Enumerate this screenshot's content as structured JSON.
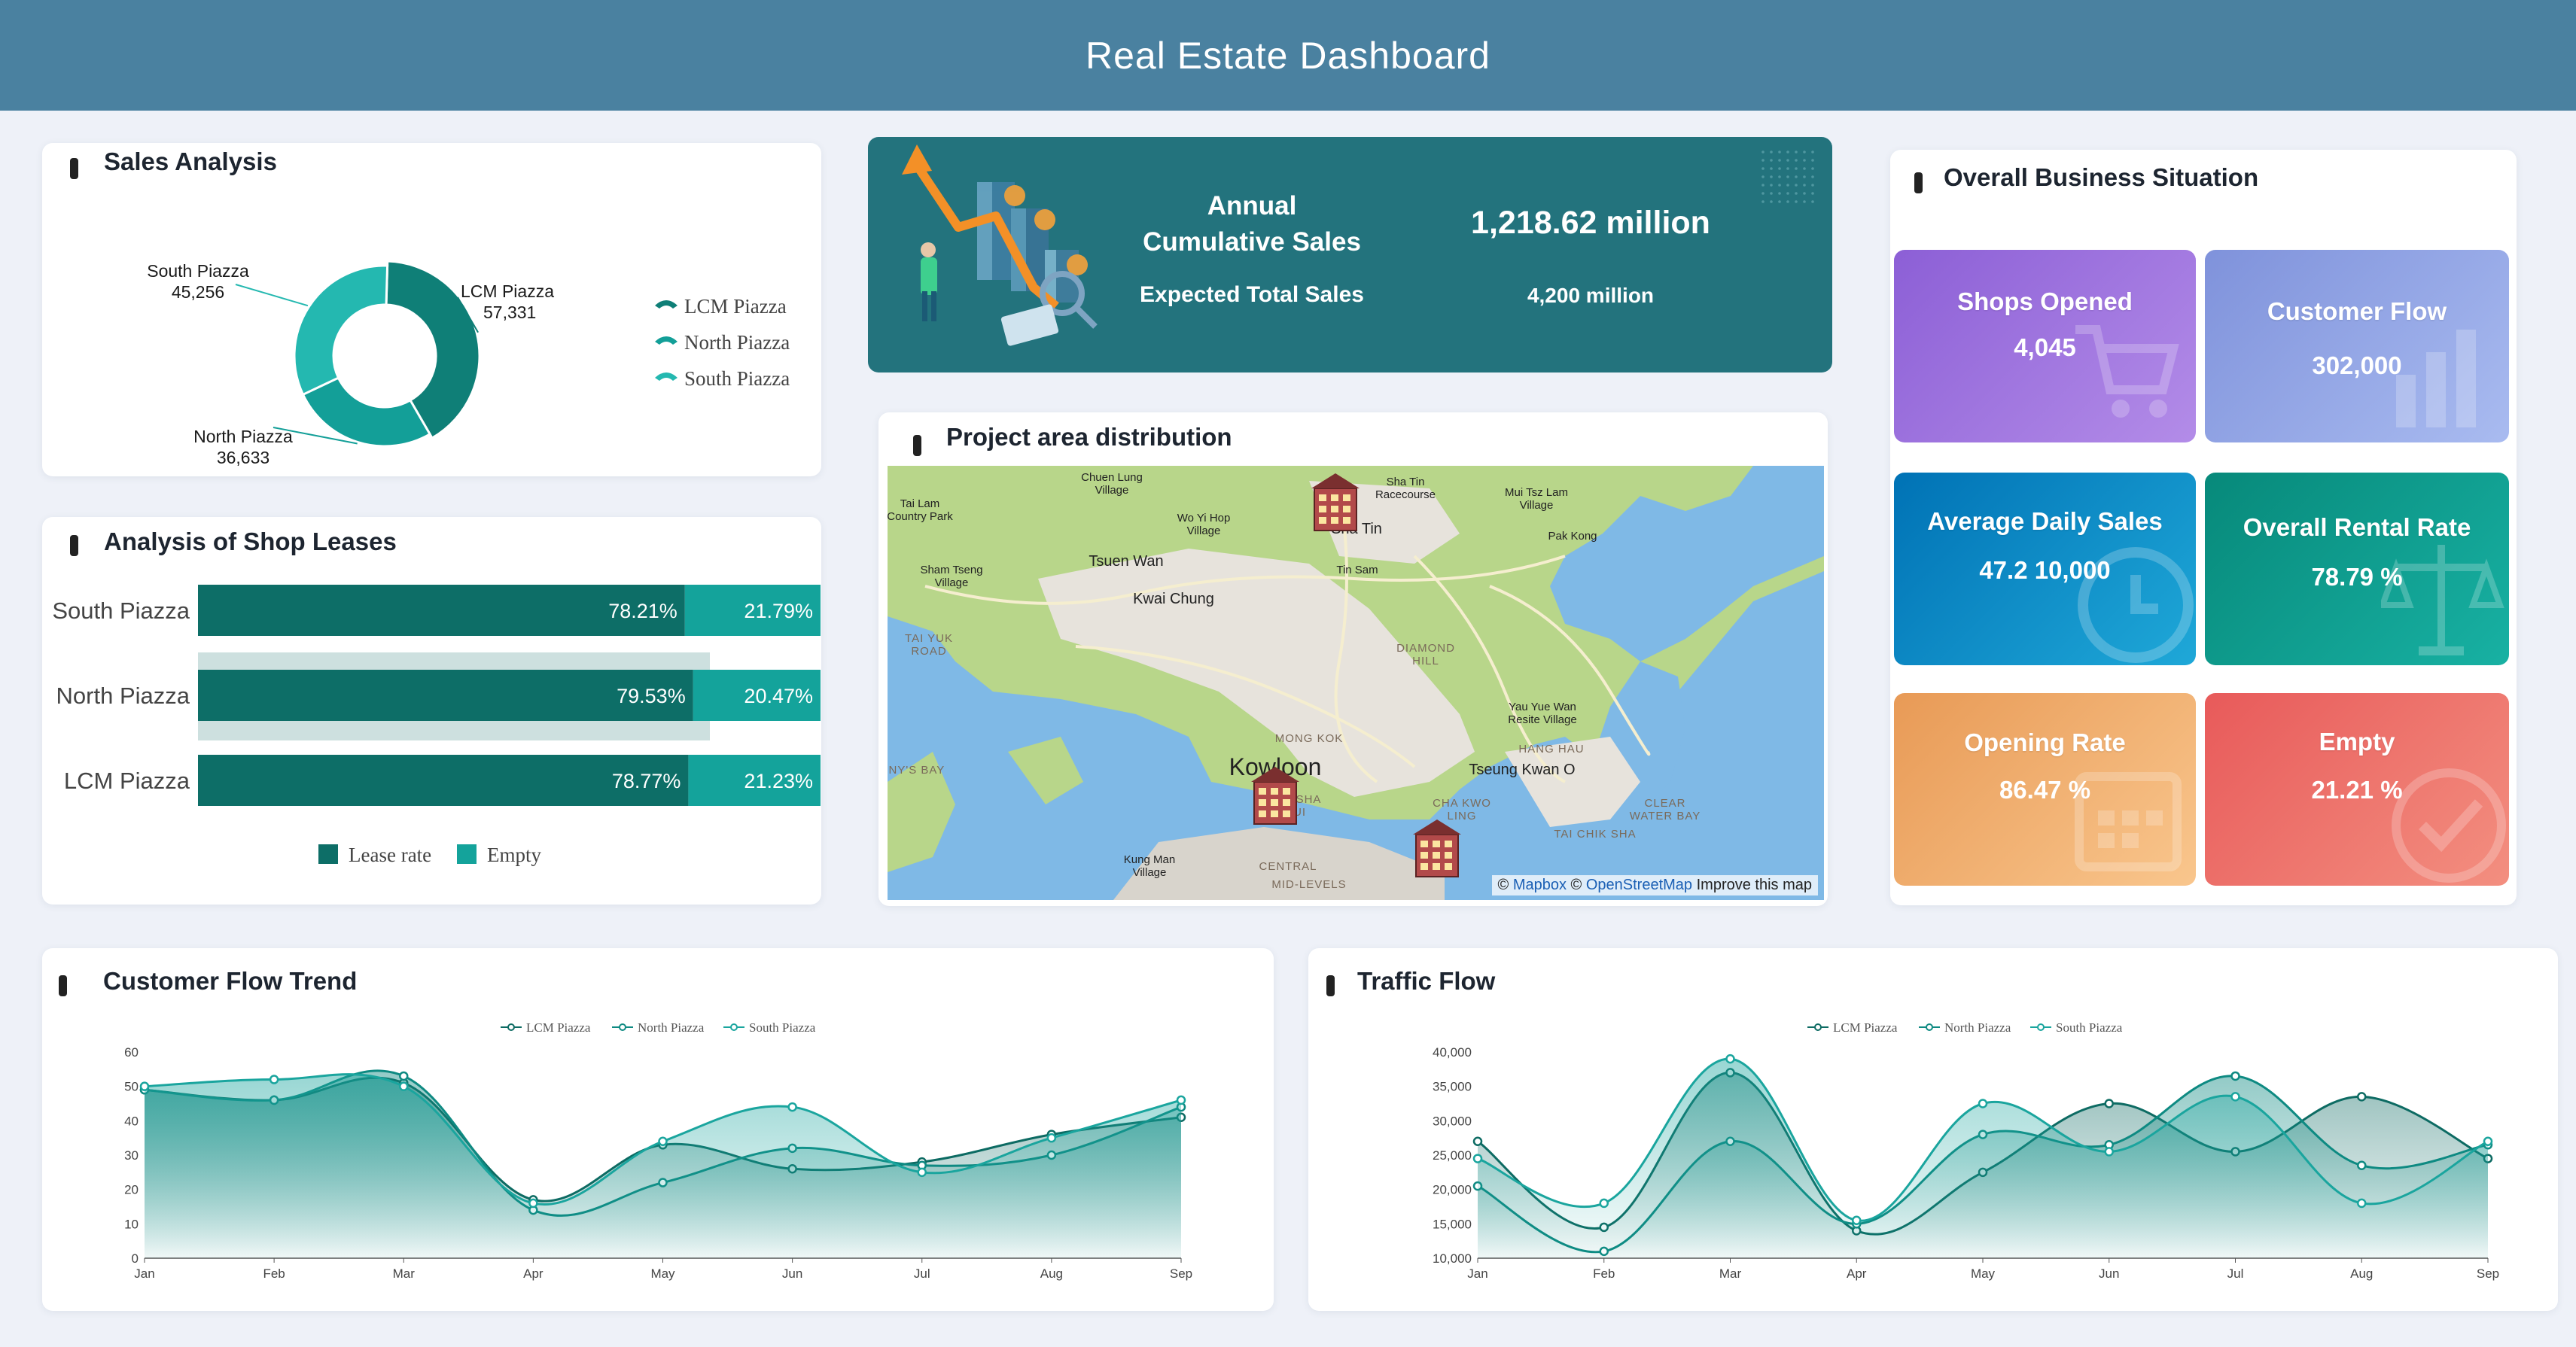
{
  "header": {
    "title": "Real Estate Dashboard"
  },
  "sales_analysis": {
    "title": "Sales Analysis",
    "chart_data": {
      "type": "pie",
      "donut": true,
      "categories": [
        "LCM Piazza",
        "North Piazza",
        "South Piazza"
      ],
      "values": [
        57331,
        36633,
        45256
      ],
      "value_labels": [
        "57,331",
        "36,633",
        "45,256"
      ],
      "colors": [
        "#0f7f77",
        "#139f98",
        "#24b8b0"
      ],
      "legend": [
        "LCM Piazza",
        "North Piazza",
        "South Piazza"
      ],
      "legend_position": "right"
    }
  },
  "banner": {
    "annual_label_line1": "Annual",
    "annual_label_line2": "Cumulative Sales",
    "annual_value": "1,218.62 million",
    "expected_label": "Expected Total Sales",
    "expected_value": "4,200 million"
  },
  "business": {
    "title": "Overall Business Situation",
    "tiles": [
      {
        "label": "Shops Opened",
        "value": "4,045",
        "icon": "shopping-cart-icon"
      },
      {
        "label": "Customer Flow",
        "value": "302,000",
        "icon": "bar-chart-icon"
      },
      {
        "label": "Average Daily Sales",
        "value": "47.2 10,000",
        "icon": "clock-icon"
      },
      {
        "label": "Overall Rental Rate",
        "value": "78.79 %",
        "icon": "scale-icon"
      },
      {
        "label": "Opening Rate",
        "value": "86.47 %",
        "icon": "calendar-icon"
      },
      {
        "label": "Empty",
        "value": "21.21 %",
        "icon": "check-circle-icon"
      }
    ],
    "colors": [
      "#9a6fde",
      "#8fa3e2",
      "#0a8bc3",
      "#0a9e8e",
      "#f0a867",
      "#ec6e66"
    ]
  },
  "leases": {
    "title": "Analysis of Shop Leases",
    "chart_data": {
      "type": "bar",
      "orientation": "horizontal",
      "stacked": true,
      "categories": [
        "South Piazza",
        "North Piazza",
        "LCM Piazza"
      ],
      "series": [
        {
          "name": "Lease rate",
          "values": [
            78.21,
            79.53,
            78.77
          ],
          "labels": [
            "78.21%",
            "79.53%",
            "78.77%"
          ],
          "color": "#0d6e67"
        },
        {
          "name": "Empty",
          "values": [
            21.79,
            20.47,
            21.23
          ],
          "labels": [
            "21.79%",
            "20.47%",
            "21.23%"
          ],
          "color": "#14a39b"
        }
      ],
      "xlim": [
        0,
        100
      ],
      "legend_position": "bottom"
    }
  },
  "map": {
    "title": "Project area distribution",
    "labels": [
      {
        "text": "Chuen Lung\nVillage",
        "size": "small"
      },
      {
        "text": "Sha Tin\nRacecourse",
        "size": "small"
      },
      {
        "text": "Mui Tsz Lam\nVillage",
        "size": "small"
      },
      {
        "text": "Tai Lam\nCountry Park",
        "size": "small"
      },
      {
        "text": "Wo Yi Hop\nVillage",
        "size": "small"
      },
      {
        "text": "Sha Tin",
        "size": "medium"
      },
      {
        "text": "Pak Kong",
        "size": "small"
      },
      {
        "text": "Sham Tseng\nVillage",
        "size": "small"
      },
      {
        "text": "Tsuen Wan",
        "size": "medium"
      },
      {
        "text": "Tin Sam",
        "size": "small"
      },
      {
        "text": "Kwai Chung",
        "size": "medium"
      },
      {
        "text": "TAI YUK\nROAD",
        "size": "small"
      },
      {
        "text": "DIAMOND\nHILL",
        "size": "small"
      },
      {
        "text": "Yau Yue Wan\nResite Village",
        "size": "small"
      },
      {
        "text": "MONG KOK",
        "size": "small"
      },
      {
        "text": "HANG HAU",
        "size": "small"
      },
      {
        "text": "Kowloon",
        "size": "large"
      },
      {
        "text": "Tseung Kwan O",
        "size": "medium"
      },
      {
        "text": "PENNY'S BAY",
        "size": "small"
      },
      {
        "text": "TSIM SHA\nTSUI",
        "size": "small"
      },
      {
        "text": "CHA KWO\nLING",
        "size": "small"
      },
      {
        "text": "CLEAR\nWATER BAY",
        "size": "small"
      },
      {
        "text": "TAI CHIK SHA",
        "size": "small"
      },
      {
        "text": "Kung Man\nVillage",
        "size": "small"
      },
      {
        "text": "CENTRAL",
        "size": "small"
      },
      {
        "text": "MID-LEVELS",
        "size": "small"
      }
    ],
    "attribution": {
      "copyright1": "©",
      "mapbox": "Mapbox",
      "copyright2": "©",
      "osm": "OpenStreetMap",
      "improve": "Improve this map"
    }
  },
  "customer_flow": {
    "title": "Customer Flow Trend",
    "chart_data": {
      "type": "area",
      "x": [
        "Jan",
        "Feb",
        "Mar",
        "Apr",
        "May",
        "Jun",
        "Jul",
        "Aug",
        "Sep"
      ],
      "series": [
        {
          "name": "LCM Piazza",
          "values": [
            49,
            46,
            51,
            17,
            33,
            26,
            28,
            36,
            41
          ],
          "color": "#0d6b63"
        },
        {
          "name": "North Piazza",
          "values": [
            49,
            46,
            53,
            14,
            22,
            32,
            27,
            30,
            44
          ],
          "color": "#0e8a82"
        },
        {
          "name": "South Piazza",
          "values": [
            50,
            52,
            50,
            16,
            34,
            44,
            25,
            35,
            46
          ],
          "color": "#1aa59e"
        }
      ],
      "ylim": [
        0,
        60
      ],
      "yticks": [
        "0",
        "10",
        "20",
        "30",
        "40",
        "50",
        "60"
      ],
      "legend_position": "top",
      "grid": false
    }
  },
  "traffic_flow": {
    "title": "Traffic Flow",
    "chart_data": {
      "type": "area",
      "x": [
        "Jan",
        "Feb",
        "Mar",
        "Apr",
        "May",
        "Jun",
        "Jul",
        "Aug",
        "Sep"
      ],
      "series": [
        {
          "name": "LCM Piazza",
          "values": [
            27000,
            14500,
            37000,
            14000,
            22500,
            32500,
            25500,
            33500,
            24500
          ],
          "color": "#0d6b63"
        },
        {
          "name": "North Piazza",
          "values": [
            20500,
            11000,
            27000,
            15000,
            28000,
            26500,
            36500,
            23500,
            26500
          ],
          "color": "#0e8a82"
        },
        {
          "name": "South Piazza",
          "values": [
            24500,
            18000,
            39000,
            15500,
            32500,
            25500,
            33500,
            18000,
            27000
          ],
          "color": "#1aa59e"
        }
      ],
      "ylim": [
        10000,
        40000
      ],
      "yticks": [
        "10,000",
        "15,000",
        "20,000",
        "25,000",
        "30,000",
        "35,000",
        "40,000"
      ],
      "legend_position": "top",
      "grid": false
    }
  }
}
